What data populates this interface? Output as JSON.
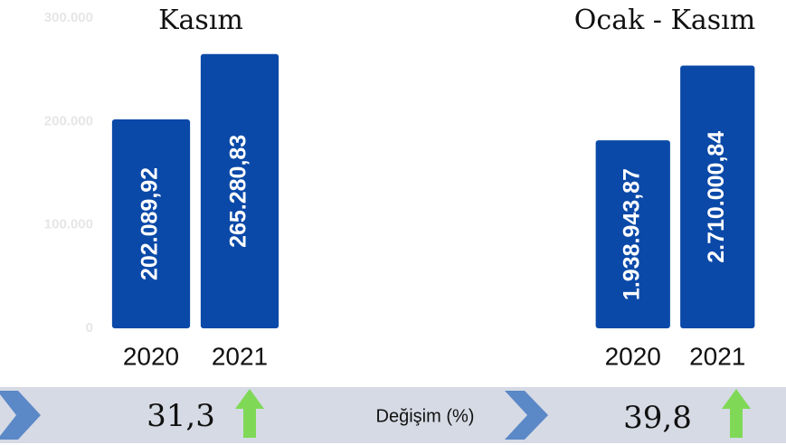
{
  "chart_data": [
    {
      "type": "bar",
      "title": "Kasım",
      "categories": [
        "2020",
        "2021"
      ],
      "values": [
        202089.92,
        265280.83
      ],
      "value_labels": [
        "202.089,92",
        "265.280,83"
      ],
      "color": "#0a49a8",
      "ylim": [
        0,
        300000
      ],
      "yticks": [
        0,
        {
          "value": 100000,
          "label": "100.000"
        },
        {
          "value": 200000,
          "label": "200.000"
        },
        {
          "value": 300000,
          "label": "300.000"
        }
      ],
      "grid": false
    },
    {
      "type": "bar",
      "title": "Ocak - Kasım",
      "categories": [
        "2020",
        "2021"
      ],
      "values": [
        1938943.87,
        2710000.84
      ],
      "value_labels": [
        "1.938.943,87",
        "2.710.000,84"
      ],
      "color": "#0a49a8",
      "ylim": [
        0,
        3200000
      ],
      "grid": false
    }
  ],
  "change": {
    "label": "Değişim (%)",
    "values": [
      31.3,
      39.8
    ],
    "value_labels": [
      "31,3",
      "39,8"
    ]
  }
}
